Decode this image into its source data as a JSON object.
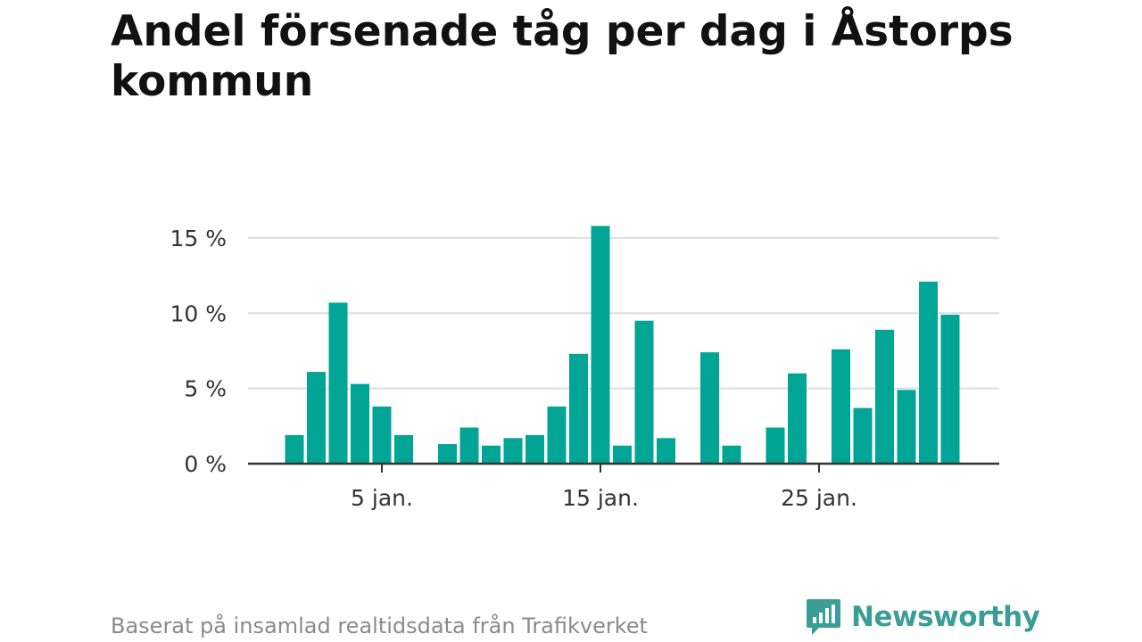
{
  "title": "Andel försenade tåg per dag i Åstorps kommun",
  "source": "Baserat på insamlad realtidsdata från Trafikverket",
  "brand": {
    "name": "Newsworthy",
    "icon": "newsworthy-logo-icon",
    "color": "#3a9e96"
  },
  "chart_data": {
    "type": "bar",
    "title": "Andel försenade tåg per dag i Åstorps kommun",
    "xlabel": "",
    "ylabel": "",
    "ylim": [
      0,
      16
    ],
    "y_ticks": [
      {
        "value": 0,
        "label": "0 %"
      },
      {
        "value": 5,
        "label": "5 %"
      },
      {
        "value": 10,
        "label": "10 %"
      },
      {
        "value": 15,
        "label": "15 %"
      }
    ],
    "x_ticks": [
      {
        "day": 5,
        "label": "5 jan."
      },
      {
        "day": 15,
        "label": "15 jan."
      },
      {
        "day": 25,
        "label": "25 jan."
      }
    ],
    "x_range_days": [
      -1,
      33
    ],
    "grid": true,
    "bar_color": "#00a596",
    "days": [
      1,
      2,
      3,
      4,
      5,
      6,
      7,
      8,
      9,
      10,
      11,
      12,
      13,
      14,
      15,
      16,
      17,
      18,
      19,
      20,
      21,
      22,
      23,
      24,
      25,
      26,
      27,
      28,
      29,
      30,
      31
    ],
    "values": [
      1.9,
      6.1,
      10.7,
      5.3,
      3.8,
      1.9,
      0,
      1.3,
      2.4,
      1.2,
      1.7,
      1.9,
      3.8,
      7.3,
      15.8,
      1.2,
      9.5,
      1.7,
      0,
      7.4,
      1.2,
      0,
      2.4,
      6.0,
      0,
      7.6,
      3.7,
      8.9,
      4.9,
      12.1,
      9.9
    ]
  }
}
